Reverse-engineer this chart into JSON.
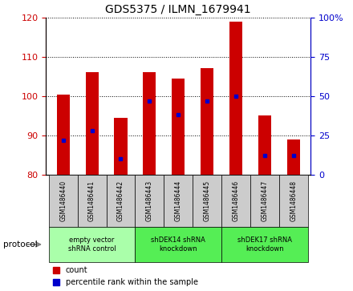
{
  "title": "GDS5375 / ILMN_1679941",
  "samples": [
    "GSM1486440",
    "GSM1486441",
    "GSM1486442",
    "GSM1486443",
    "GSM1486444",
    "GSM1486445",
    "GSM1486446",
    "GSM1486447",
    "GSM1486448"
  ],
  "counts": [
    100.3,
    106.0,
    94.5,
    106.0,
    104.5,
    107.0,
    119.0,
    95.0,
    89.0
  ],
  "percentile_ranks": [
    22,
    28,
    10,
    47,
    38,
    47,
    50,
    12,
    12
  ],
  "bar_bottom": 80,
  "ylim_left": [
    80,
    120
  ],
  "ylim_right": [
    0,
    100
  ],
  "yticks_left": [
    80,
    90,
    100,
    110,
    120
  ],
  "yticks_right": [
    0,
    25,
    50,
    75,
    100
  ],
  "bar_color": "#cc0000",
  "dot_color": "#0000cc",
  "protocol_groups": [
    {
      "label": "empty vector\nshRNA control",
      "start": 0,
      "end": 3,
      "color": "#aaffaa"
    },
    {
      "label": "shDEK14 shRNA\nknockdown",
      "start": 3,
      "end": 6,
      "color": "#55ee55"
    },
    {
      "label": "shDEK17 shRNA\nknockdown",
      "start": 6,
      "end": 9,
      "color": "#55ee55"
    }
  ],
  "protocol_label": "protocol",
  "legend_count_label": "count",
  "legend_percentile_label": "percentile rank within the sample",
  "bar_width": 0.45,
  "tick_color_left": "#cc0000",
  "tick_color_right": "#0000cc",
  "sample_box_color": "#cccccc",
  "n_samples": 9
}
